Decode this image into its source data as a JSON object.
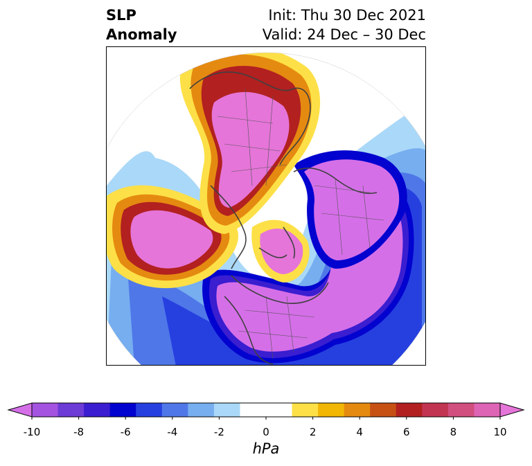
{
  "header": {
    "title_line1": "SLP",
    "title_line2": "Anomaly",
    "init_label": "Init: Thu 30 Dec 2021",
    "valid_label": "Valid: 24 Dec – 30 Dec"
  },
  "colorbar": {
    "unit": "hPa",
    "min": -10,
    "max": 10,
    "step": 1.111,
    "extend": "both",
    "colors": [
      "#d56fe8",
      "#a353e0",
      "#6d3bd6",
      "#3a1ed0",
      "#0303cf",
      "#2640e0",
      "#4f77e8",
      "#76aef0",
      "#aad8f8",
      "#ffffff",
      "#ffffff",
      "#fde047",
      "#f2b705",
      "#e58a10",
      "#c75015",
      "#b22020",
      "#c23552",
      "#d14f7e",
      "#de65b5",
      "#e575d9"
    ],
    "ticks": [
      "-10",
      "-8",
      "-6",
      "-4",
      "-2",
      "0",
      "2",
      "4",
      "6",
      "8",
      "10"
    ]
  }
}
